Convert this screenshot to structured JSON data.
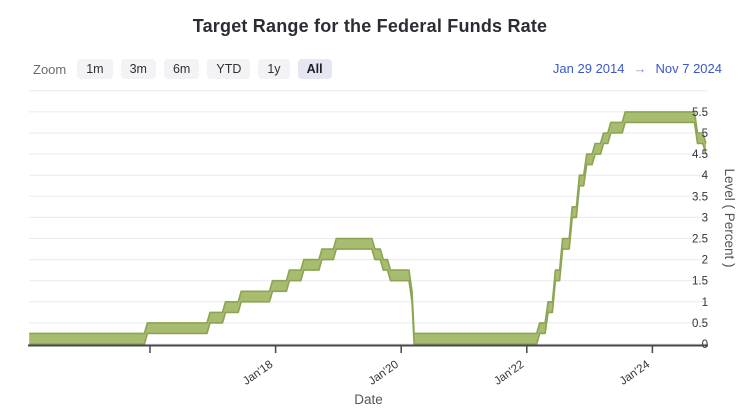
{
  "title": "Target Range for the Federal Funds Rate",
  "range_selector": {
    "zoom_label": "Zoom",
    "buttons": [
      {
        "label": "1m"
      },
      {
        "label": "3m"
      },
      {
        "label": "6m"
      },
      {
        "label": "YTD"
      },
      {
        "label": "1y"
      },
      {
        "label": "All"
      }
    ],
    "selected": "All",
    "start_date": "Jan 29 2014",
    "arrow": "→",
    "end_date": "Nov 7 2024"
  },
  "chart_data": {
    "type": "area",
    "subtype": "arearange-step",
    "title": "Target Range for the Federal Funds Rate",
    "xlabel": "Date",
    "ylabel": "Level ( Percent )",
    "x_range": [
      "2014-01-29",
      "2024-11-07"
    ],
    "ylim": [
      0,
      6
    ],
    "yticks": [
      0,
      0.5,
      1,
      1.5,
      2,
      2.5,
      3,
      3.5,
      4,
      4.5,
      5,
      5.5
    ],
    "xticks": [
      {
        "year": 2016,
        "label": ""
      },
      {
        "year": 2018,
        "label": "Jan'18"
      },
      {
        "year": 2020,
        "label": "Jan'20"
      },
      {
        "year": 2022,
        "label": "Jan'22"
      },
      {
        "year": 2024,
        "label": "Jan'24"
      }
    ],
    "grid": true,
    "legend": "none",
    "series": [
      {
        "name": "Target Range",
        "points": [
          [
            "2014-01-29",
            0.0,
            0.25
          ],
          [
            "2015-12-17",
            0.25,
            0.5
          ],
          [
            "2016-12-15",
            0.5,
            0.75
          ],
          [
            "2017-03-16",
            0.75,
            1.0
          ],
          [
            "2017-06-15",
            1.0,
            1.25
          ],
          [
            "2017-12-14",
            1.25,
            1.5
          ],
          [
            "2018-03-22",
            1.5,
            1.75
          ],
          [
            "2018-06-14",
            1.75,
            2.0
          ],
          [
            "2018-09-27",
            2.0,
            2.25
          ],
          [
            "2018-12-20",
            2.25,
            2.5
          ],
          [
            "2019-08-01",
            2.0,
            2.25
          ],
          [
            "2019-09-19",
            1.75,
            2.0
          ],
          [
            "2019-10-31",
            1.5,
            1.75
          ],
          [
            "2020-03-04",
            1.0,
            1.25
          ],
          [
            "2020-03-16",
            0.0,
            0.25
          ],
          [
            "2022-03-17",
            0.25,
            0.5
          ],
          [
            "2022-05-05",
            0.75,
            1.0
          ],
          [
            "2022-06-16",
            1.5,
            1.75
          ],
          [
            "2022-07-28",
            2.25,
            2.5
          ],
          [
            "2022-09-22",
            3.0,
            3.25
          ],
          [
            "2022-11-03",
            3.75,
            4.0
          ],
          [
            "2022-12-15",
            4.25,
            4.5
          ],
          [
            "2023-02-02",
            4.5,
            4.75
          ],
          [
            "2023-03-23",
            4.75,
            5.0
          ],
          [
            "2023-05-04",
            5.0,
            5.25
          ],
          [
            "2023-07-27",
            5.25,
            5.5
          ],
          [
            "2024-09-19",
            4.75,
            5.0
          ],
          [
            "2024-11-07",
            4.5,
            4.75
          ]
        ]
      }
    ],
    "colors": {
      "band_fill": "#a7bc6e",
      "band_stroke": "#8ca454",
      "grid": "#eaeaee",
      "axis": "#47474d",
      "tick_label": "#33333a",
      "axis_title": "#55555c",
      "title_color": "#2c2c34",
      "date_link": "#3a57cc",
      "arrow": "#8090c8",
      "button_bg": "#f3f3f6",
      "button_selected_bg": "#e6e6f3"
    }
  }
}
